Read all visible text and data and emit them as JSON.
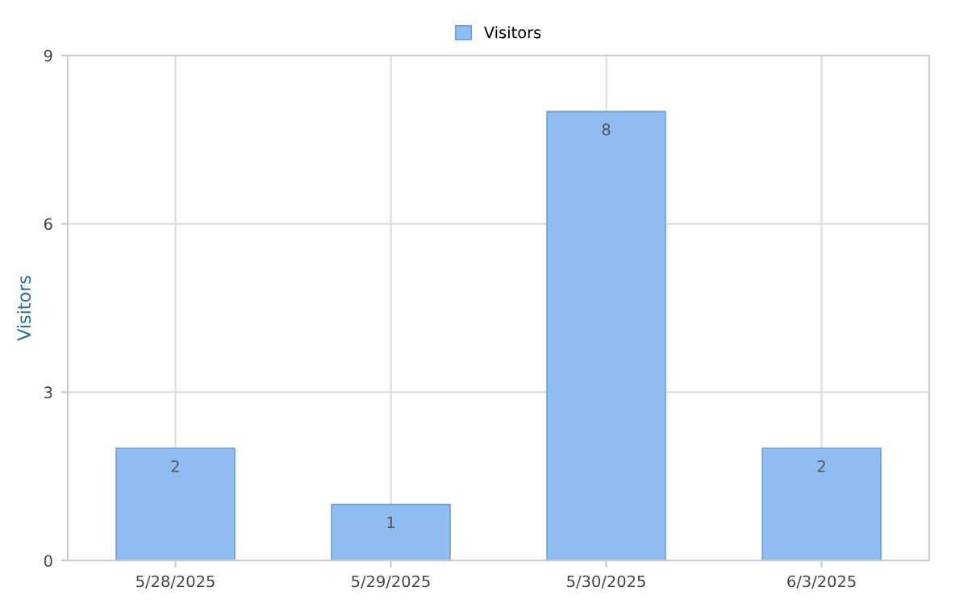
{
  "chart_data": {
    "type": "bar",
    "ylabel": "Visitors",
    "categories": [
      "5/28/2025",
      "5/29/2025",
      "5/30/2025",
      "6/3/2025"
    ],
    "series": [
      {
        "name": "Visitors",
        "color": "#8fbdf2",
        "values": [
          2,
          1,
          8,
          2
        ]
      }
    ],
    "ylim": [
      0,
      9
    ],
    "yticks": [
      0,
      3,
      6,
      9
    ],
    "grid": true,
    "legend": "top",
    "data_labels": true
  }
}
